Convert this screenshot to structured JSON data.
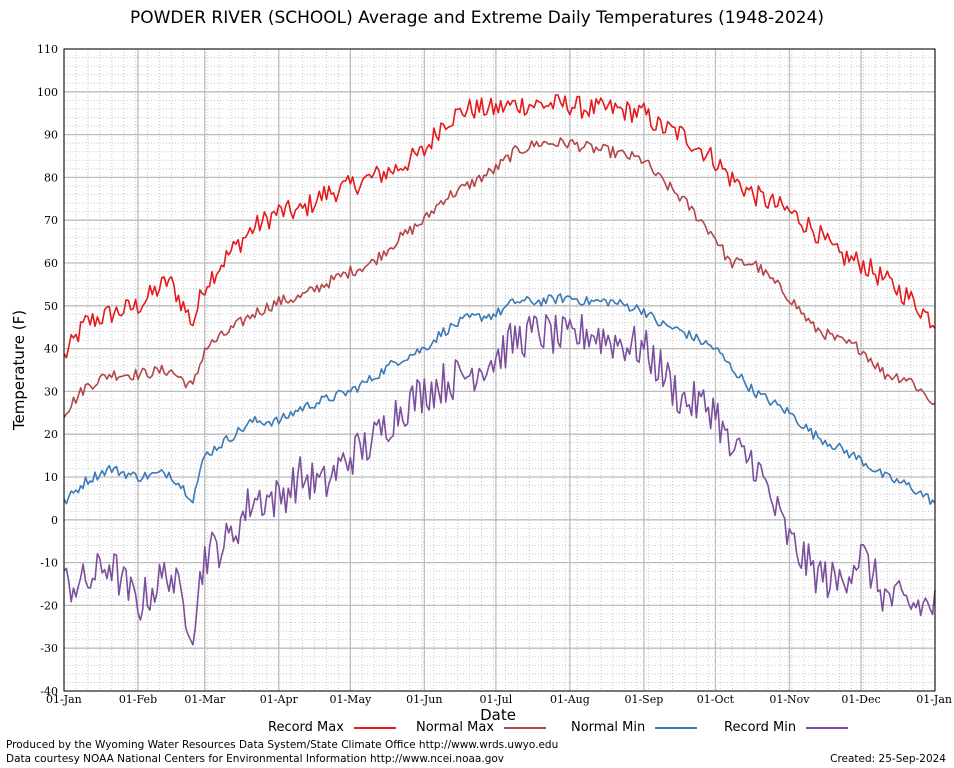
{
  "chart_data": {
    "type": "line",
    "title": "POWDER RIVER (SCHOOL) Average and Extreme Daily Temperatures (1948-2024)",
    "xlabel": "Date",
    "ylabel": "Temperature (F)",
    "ylim": [
      -40,
      110
    ],
    "yticks": [
      -40,
      -30,
      -20,
      -10,
      0,
      10,
      20,
      30,
      40,
      50,
      60,
      70,
      80,
      90,
      100,
      110
    ],
    "xticks": [
      "01-Jan",
      "01-Feb",
      "01-Mar",
      "01-Apr",
      "01-May",
      "01-Jun",
      "01-Jul",
      "01-Aug",
      "01-Sep",
      "01-Oct",
      "01-Nov",
      "01-Dec",
      "01-Jan"
    ],
    "xtick_days": [
      1,
      32,
      60,
      91,
      121,
      152,
      182,
      213,
      244,
      274,
      305,
      335,
      366
    ],
    "grid": true,
    "legend_position": "bottom",
    "series": [
      {
        "name": "Record Max",
        "color": "#e41a1c",
        "points": [
          [
            1,
            38
          ],
          [
            10,
            46
          ],
          [
            20,
            48
          ],
          [
            32,
            50
          ],
          [
            45,
            56
          ],
          [
            55,
            46
          ],
          [
            60,
            55
          ],
          [
            70,
            62
          ],
          [
            80,
            68
          ],
          [
            91,
            72
          ],
          [
            100,
            72
          ],
          [
            110,
            76
          ],
          [
            121,
            78
          ],
          [
            130,
            80
          ],
          [
            140,
            82
          ],
          [
            152,
            86
          ],
          [
            160,
            93
          ],
          [
            170,
            96
          ],
          [
            182,
            96
          ],
          [
            190,
            97
          ],
          [
            200,
            97
          ],
          [
            213,
            97
          ],
          [
            220,
            96
          ],
          [
            230,
            96
          ],
          [
            244,
            95
          ],
          [
            250,
            92
          ],
          [
            260,
            90
          ],
          [
            274,
            84
          ],
          [
            280,
            80
          ],
          [
            290,
            76
          ],
          [
            305,
            72
          ],
          [
            315,
            68
          ],
          [
            325,
            62
          ],
          [
            335,
            60
          ],
          [
            345,
            56
          ],
          [
            355,
            52
          ],
          [
            366,
            46
          ]
        ]
      },
      {
        "name": "Normal Max",
        "color": "#b2474a",
        "points": [
          [
            1,
            25
          ],
          [
            10,
            31
          ],
          [
            20,
            34
          ],
          [
            32,
            34
          ],
          [
            45,
            35
          ],
          [
            55,
            31
          ],
          [
            60,
            40
          ],
          [
            70,
            44
          ],
          [
            80,
            48
          ],
          [
            91,
            51
          ],
          [
            100,
            52
          ],
          [
            110,
            55
          ],
          [
            121,
            58
          ],
          [
            130,
            60
          ],
          [
            140,
            65
          ],
          [
            152,
            70
          ],
          [
            160,
            75
          ],
          [
            170,
            78
          ],
          [
            182,
            82
          ],
          [
            190,
            86
          ],
          [
            200,
            88
          ],
          [
            213,
            88
          ],
          [
            220,
            87
          ],
          [
            230,
            86
          ],
          [
            244,
            84
          ],
          [
            250,
            80
          ],
          [
            260,
            75
          ],
          [
            274,
            66
          ],
          [
            280,
            60
          ],
          [
            290,
            60
          ],
          [
            305,
            52
          ],
          [
            315,
            45
          ],
          [
            325,
            42
          ],
          [
            335,
            40
          ],
          [
            345,
            34
          ],
          [
            355,
            33
          ],
          [
            366,
            27
          ]
        ]
      },
      {
        "name": "Normal Min",
        "color": "#3b7ab6",
        "points": [
          [
            1,
            4
          ],
          [
            10,
            9
          ],
          [
            20,
            12
          ],
          [
            32,
            10
          ],
          [
            45,
            11
          ],
          [
            55,
            5
          ],
          [
            60,
            15
          ],
          [
            70,
            19
          ],
          [
            80,
            23
          ],
          [
            91,
            23
          ],
          [
            100,
            26
          ],
          [
            110,
            28
          ],
          [
            121,
            30
          ],
          [
            130,
            33
          ],
          [
            140,
            37
          ],
          [
            152,
            40
          ],
          [
            160,
            44
          ],
          [
            170,
            47
          ],
          [
            182,
            48
          ],
          [
            190,
            51
          ],
          [
            200,
            51
          ],
          [
            213,
            52
          ],
          [
            220,
            51
          ],
          [
            230,
            51
          ],
          [
            244,
            49
          ],
          [
            250,
            46
          ],
          [
            260,
            44
          ],
          [
            274,
            40
          ],
          [
            280,
            36
          ],
          [
            290,
            30
          ],
          [
            305,
            25
          ],
          [
            315,
            20
          ],
          [
            325,
            17
          ],
          [
            335,
            14
          ],
          [
            345,
            10
          ],
          [
            355,
            8
          ],
          [
            366,
            4
          ]
        ]
      },
      {
        "name": "Record Min",
        "color": "#7b4f9d",
        "points": [
          [
            1,
            -15
          ],
          [
            10,
            -15
          ],
          [
            20,
            -10
          ],
          [
            32,
            -20
          ],
          [
            45,
            -12
          ],
          [
            55,
            -25
          ],
          [
            60,
            -8
          ],
          [
            70,
            -5
          ],
          [
            80,
            5
          ],
          [
            91,
            5
          ],
          [
            100,
            10
          ],
          [
            110,
            8
          ],
          [
            121,
            15
          ],
          [
            130,
            18
          ],
          [
            140,
            25
          ],
          [
            152,
            30
          ],
          [
            160,
            32
          ],
          [
            170,
            34
          ],
          [
            182,
            38
          ],
          [
            190,
            42
          ],
          [
            200,
            44
          ],
          [
            213,
            42
          ],
          [
            220,
            44
          ],
          [
            230,
            42
          ],
          [
            244,
            40
          ],
          [
            250,
            36
          ],
          [
            260,
            28
          ],
          [
            274,
            26
          ],
          [
            280,
            16
          ],
          [
            290,
            14
          ],
          [
            305,
            -5
          ],
          [
            315,
            -12
          ],
          [
            325,
            -15
          ],
          [
            335,
            -8
          ],
          [
            345,
            -18
          ],
          [
            355,
            -20
          ],
          [
            366,
            -20
          ]
        ]
      }
    ]
  },
  "footer": {
    "line1": "Produced by the Wyoming Water Resources Data System/State Climate Office http://www.wrds.uwyo.edu",
    "line2": "Data courtesy NOAA National Centers for Environmental Information http://www.ncei.noaa.gov",
    "created": "Created: 25-Sep-2024"
  }
}
